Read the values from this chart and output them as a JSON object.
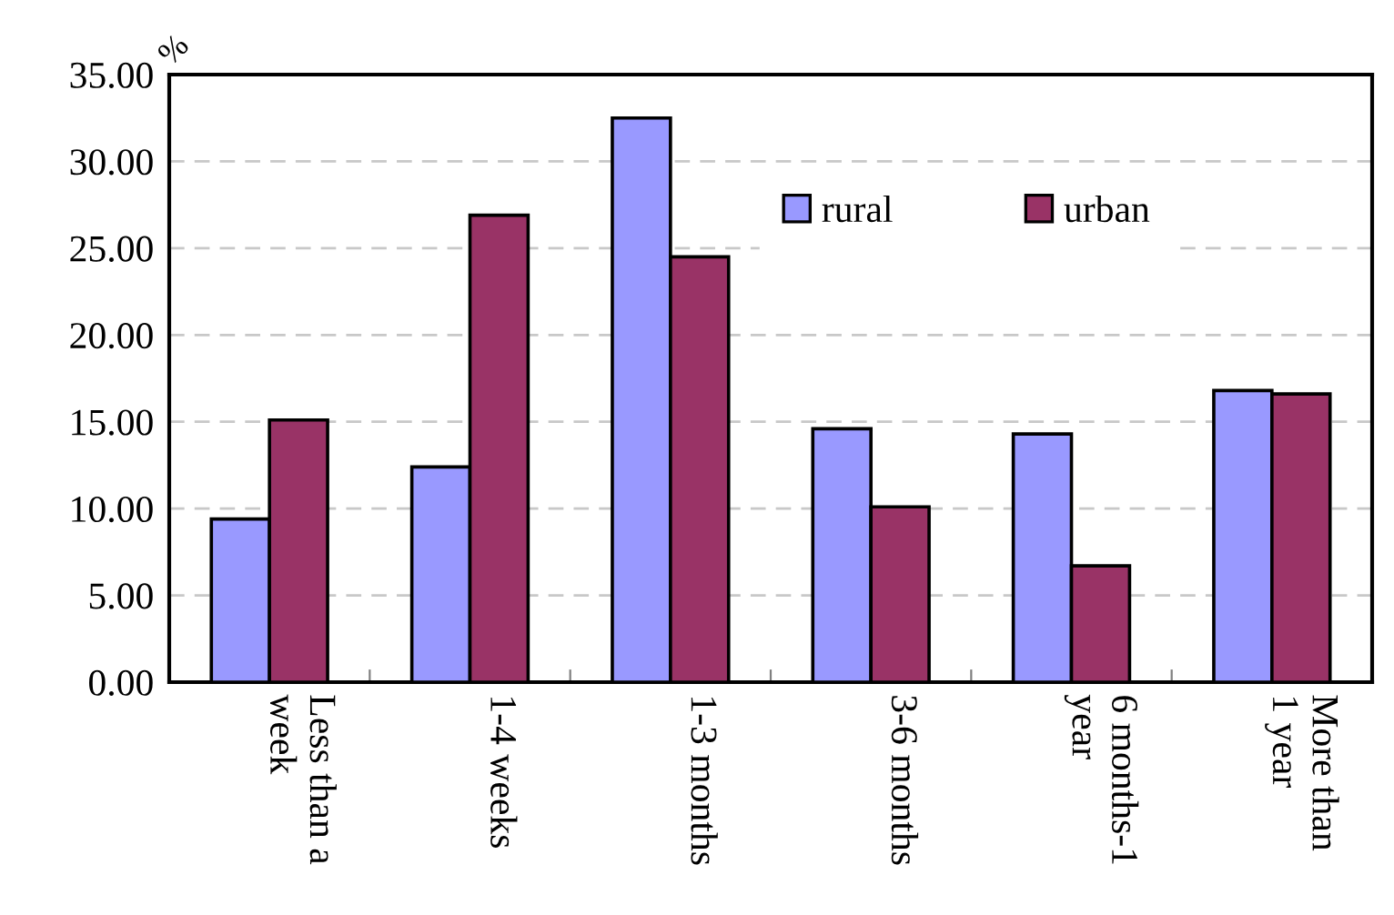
{
  "chart_data": {
    "type": "bar",
    "ylabel": "%",
    "categories": [
      "Less than a\nweek",
      "1-4 weeks",
      "1-3 months",
      "3-6 months",
      "6 months-1\nyear",
      "More than\n1 year"
    ],
    "series": [
      {
        "name": "rural",
        "color": "#9999ff",
        "values": [
          9.4,
          12.4,
          32.5,
          14.6,
          14.3,
          16.8
        ]
      },
      {
        "name": "urban",
        "color": "#993366",
        "values": [
          15.1,
          26.9,
          24.5,
          10.1,
          6.7,
          16.6
        ]
      }
    ],
    "ylim": [
      0,
      35
    ],
    "yticks": [
      {
        "value": 0,
        "label": "0.00"
      },
      {
        "value": 5,
        "label": "5.00"
      },
      {
        "value": 10,
        "label": "10.00"
      },
      {
        "value": 15,
        "label": "15.00"
      },
      {
        "value": 20,
        "label": "20.00"
      },
      {
        "value": 25,
        "label": "25.00"
      },
      {
        "value": 30,
        "label": "30.00"
      },
      {
        "value": 35,
        "label": "35.00"
      }
    ],
    "grid": "y",
    "legend": "top right"
  }
}
